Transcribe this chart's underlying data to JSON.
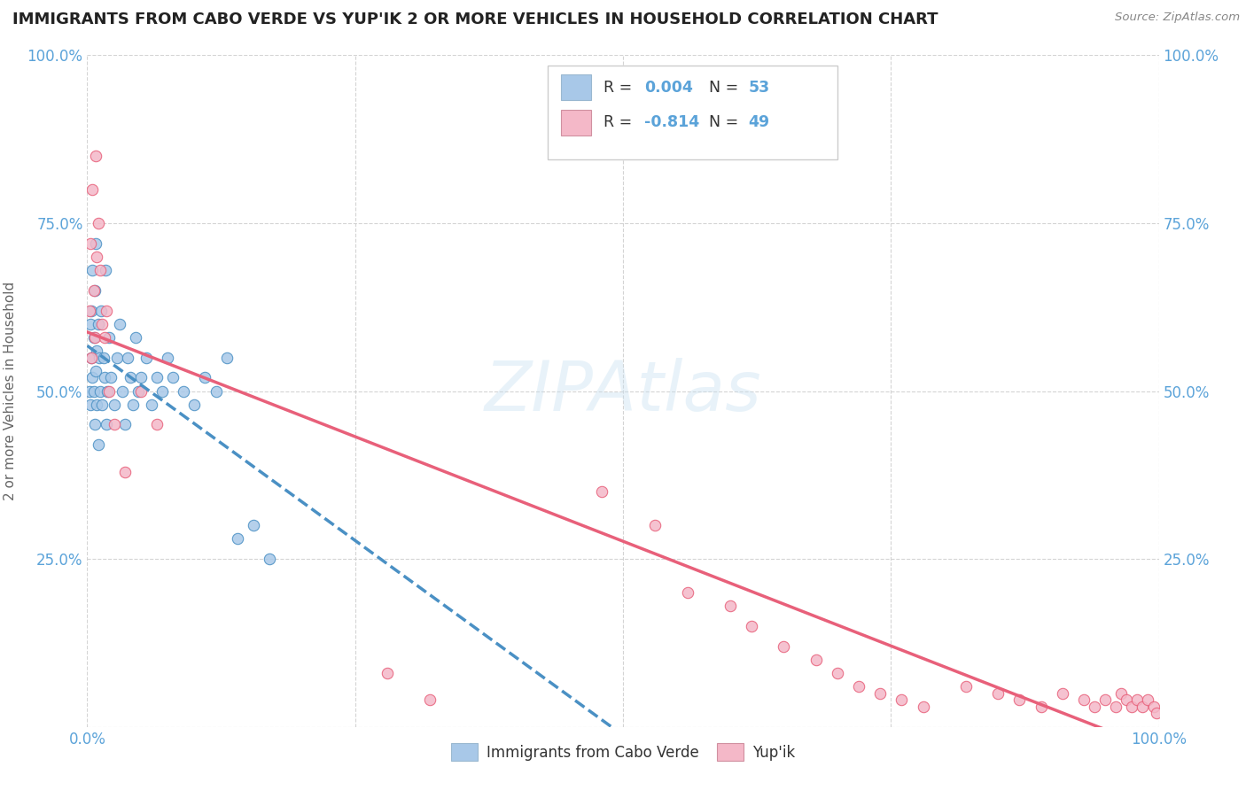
{
  "title": "IMMIGRANTS FROM CABO VERDE VS YUP'IK 2 OR MORE VEHICLES IN HOUSEHOLD CORRELATION CHART",
  "source": "Source: ZipAtlas.com",
  "ylabel": "2 or more Vehicles in Household",
  "watermark_text": "ZIPAtlas",
  "legend_label1": "Immigrants from Cabo Verde",
  "legend_label2": "Yup'ik",
  "blue_color": "#a8c8e8",
  "pink_color": "#f4b8c8",
  "blue_line_color": "#4a90c4",
  "pink_line_color": "#e8607a",
  "axis_color": "#5ba3d9",
  "background_color": "#ffffff",
  "grid_color": "#d0d0d0",
  "R_blue": 0.004,
  "N_blue": 53,
  "R_pink": -0.814,
  "N_pink": 49,
  "xlim": [
    0.0,
    1.0
  ],
  "ylim": [
    0.0,
    1.0
  ],
  "xticks": [
    0.0,
    0.25,
    0.5,
    0.75,
    1.0
  ],
  "xticklabels": [
    "0.0%",
    "",
    "",
    "",
    "100.0%"
  ],
  "yticks_left": [
    0.0,
    0.25,
    0.5,
    0.75,
    1.0
  ],
  "yticklabels_left": [
    "",
    "25.0%",
    "50.0%",
    "75.0%",
    "100.0%"
  ],
  "yticklabels_right": [
    "",
    "25.0%",
    "50.0%",
    "75.0%",
    "100.0%"
  ],
  "blue_x": [
    0.002,
    0.003,
    0.003,
    0.004,
    0.004,
    0.005,
    0.005,
    0.006,
    0.006,
    0.007,
    0.007,
    0.008,
    0.008,
    0.009,
    0.009,
    0.01,
    0.01,
    0.011,
    0.012,
    0.013,
    0.014,
    0.015,
    0.016,
    0.017,
    0.018,
    0.019,
    0.02,
    0.022,
    0.025,
    0.028,
    0.03,
    0.033,
    0.035,
    0.038,
    0.04,
    0.043,
    0.045,
    0.048,
    0.05,
    0.055,
    0.06,
    0.065,
    0.07,
    0.075,
    0.08,
    0.09,
    0.1,
    0.11,
    0.12,
    0.13,
    0.14,
    0.155,
    0.17
  ],
  "blue_y": [
    0.5,
    0.6,
    0.48,
    0.55,
    0.62,
    0.52,
    0.68,
    0.5,
    0.58,
    0.45,
    0.65,
    0.53,
    0.72,
    0.48,
    0.56,
    0.6,
    0.42,
    0.55,
    0.5,
    0.62,
    0.48,
    0.55,
    0.52,
    0.68,
    0.45,
    0.5,
    0.58,
    0.52,
    0.48,
    0.55,
    0.6,
    0.5,
    0.45,
    0.55,
    0.52,
    0.48,
    0.58,
    0.5,
    0.52,
    0.55,
    0.48,
    0.52,
    0.5,
    0.55,
    0.52,
    0.5,
    0.48,
    0.52,
    0.5,
    0.55,
    0.28,
    0.3,
    0.25
  ],
  "pink_x": [
    0.002,
    0.003,
    0.004,
    0.005,
    0.006,
    0.007,
    0.008,
    0.009,
    0.01,
    0.012,
    0.014,
    0.016,
    0.018,
    0.02,
    0.025,
    0.035,
    0.05,
    0.065,
    0.28,
    0.32,
    0.48,
    0.53,
    0.56,
    0.6,
    0.62,
    0.65,
    0.68,
    0.7,
    0.72,
    0.74,
    0.76,
    0.78,
    0.82,
    0.85,
    0.87,
    0.89,
    0.91,
    0.93,
    0.94,
    0.95,
    0.96,
    0.965,
    0.97,
    0.975,
    0.98,
    0.985,
    0.99,
    0.995,
    0.998
  ],
  "pink_y": [
    0.62,
    0.72,
    0.55,
    0.8,
    0.65,
    0.58,
    0.85,
    0.7,
    0.75,
    0.68,
    0.6,
    0.58,
    0.62,
    0.5,
    0.45,
    0.38,
    0.5,
    0.45,
    0.08,
    0.04,
    0.35,
    0.3,
    0.2,
    0.18,
    0.15,
    0.12,
    0.1,
    0.08,
    0.06,
    0.05,
    0.04,
    0.03,
    0.06,
    0.05,
    0.04,
    0.03,
    0.05,
    0.04,
    0.03,
    0.04,
    0.03,
    0.05,
    0.04,
    0.03,
    0.04,
    0.03,
    0.04,
    0.03,
    0.02
  ]
}
